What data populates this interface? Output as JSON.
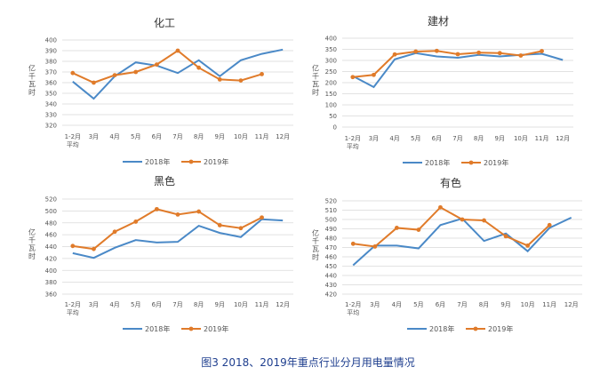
{
  "colors": {
    "s2018": "#4a89c7",
    "s2019": "#e07b2a",
    "grid": "#d9d9d9"
  },
  "figure_caption": "图3   2018、2019年重点行业分月用电量情况",
  "chart_data": [
    {
      "type": "line",
      "title": "化工",
      "ylabel": "亿千瓦时",
      "categories": [
        "1-2月\n平均",
        "3月",
        "4月",
        "5月",
        "6月",
        "7月",
        "8月",
        "9月",
        "10月",
        "11月",
        "12月"
      ],
      "ylim": [
        320,
        400
      ],
      "yticks": [
        320,
        330,
        340,
        350,
        360,
        370,
        380,
        390,
        400
      ],
      "series": [
        {
          "name": "2018年",
          "color_key": "s2018",
          "values": [
            361,
            345,
            366,
            379,
            376,
            369,
            381,
            366,
            381,
            387,
            391
          ]
        },
        {
          "name": "2019年",
          "color_key": "s2019",
          "values": [
            369,
            360,
            367,
            370,
            377,
            390,
            374,
            363,
            362,
            368,
            null
          ]
        }
      ]
    },
    {
      "type": "line",
      "title": "建材",
      "ylabel": "亿千瓦时",
      "categories": [
        "1-2月\n平均",
        "3月",
        "4月",
        "5月",
        "6月",
        "7月",
        "8月",
        "9月",
        "10月",
        "11月",
        "12月"
      ],
      "ylim": [
        0,
        400
      ],
      "yticks": [
        0,
        50,
        100,
        150,
        200,
        250,
        300,
        350,
        400
      ],
      "series": [
        {
          "name": "2018年",
          "color_key": "s2018",
          "values": [
            230,
            180,
            305,
            333,
            318,
            312,
            325,
            318,
            325,
            330,
            302
          ]
        },
        {
          "name": "2019年",
          "color_key": "s2019",
          "values": [
            225,
            235,
            327,
            340,
            343,
            328,
            335,
            333,
            322,
            342,
            null
          ]
        }
      ]
    },
    {
      "type": "line",
      "title": "黑色",
      "ylabel": "亿千瓦时",
      "categories": [
        "1-2月\n平均",
        "3月",
        "4月",
        "5月",
        "6月",
        "7月",
        "8月",
        "9月",
        "10月",
        "11月",
        "12月"
      ],
      "ylim": [
        360,
        520
      ],
      "yticks": [
        360,
        380,
        400,
        420,
        440,
        460,
        480,
        500,
        520
      ],
      "series": [
        {
          "name": "2018年",
          "color_key": "s2018",
          "values": [
            429,
            421,
            438,
            451,
            447,
            448,
            475,
            463,
            456,
            486,
            484
          ]
        },
        {
          "name": "2019年",
          "color_key": "s2019",
          "values": [
            441,
            436,
            465,
            482,
            503,
            494,
            499,
            476,
            471,
            489,
            null
          ]
        }
      ]
    },
    {
      "type": "line",
      "title": "有色",
      "ylabel": "亿千瓦时",
      "categories": [
        "1-2月\n平均",
        "3月",
        "4月",
        "5月",
        "6月",
        "7月",
        "8月",
        "9月",
        "10月",
        "11月",
        "12月"
      ],
      "ylim": [
        420,
        520
      ],
      "yticks": [
        420,
        430,
        440,
        450,
        460,
        470,
        480,
        490,
        500,
        510,
        520
      ],
      "series": [
        {
          "name": "2018年",
          "color_key": "s2018",
          "values": [
            451,
            472,
            472,
            469,
            494,
            501,
            477,
            485,
            466,
            491,
            502
          ]
        },
        {
          "name": "2019年",
          "color_key": "s2019",
          "values": [
            474,
            471,
            491,
            489,
            513,
            500,
            499,
            482,
            472,
            494,
            null
          ]
        }
      ]
    }
  ]
}
